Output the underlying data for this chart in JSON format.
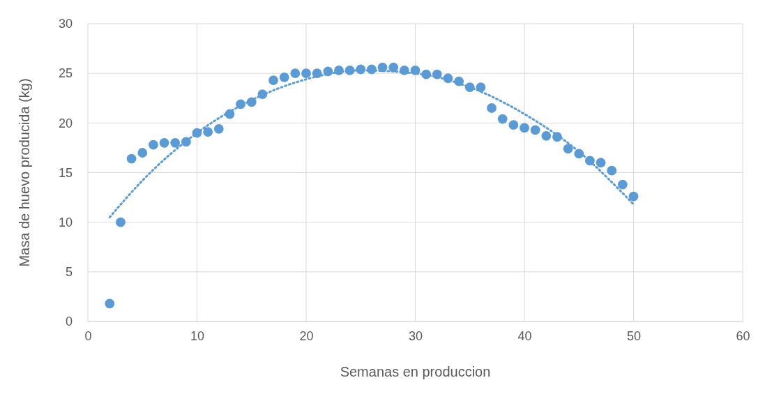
{
  "chart_data": {
    "type": "scatter",
    "xlabel": "Semanas en produccion",
    "ylabel": "Masa de huevo producida (kg)",
    "xlim": [
      0,
      60
    ],
    "xticks": [
      0,
      10,
      20,
      30,
      40,
      50,
      60
    ],
    "ylim": [
      0,
      30
    ],
    "yticks": [
      0,
      5,
      10,
      15,
      20,
      25,
      30
    ],
    "grid": true,
    "series": [
      {
        "color": "#5b9bd5",
        "marker": "circle",
        "x": [
          2,
          3,
          4,
          5,
          6,
          7,
          8,
          9,
          10,
          11,
          12,
          13,
          14,
          15,
          16,
          17,
          18,
          19,
          20,
          21,
          22,
          23,
          24,
          25,
          26,
          27,
          28,
          29,
          30,
          31,
          32,
          33,
          34,
          35,
          36,
          37,
          38,
          39,
          40,
          41,
          42,
          43,
          44,
          45,
          46,
          47,
          48,
          49,
          50
        ],
        "values": [
          1.8,
          10.0,
          16.4,
          17.0,
          17.8,
          18.0,
          18.0,
          18.1,
          19.0,
          19.1,
          19.4,
          20.9,
          21.9,
          22.1,
          22.9,
          24.3,
          24.6,
          25.0,
          25.0,
          25.0,
          25.2,
          25.3,
          25.3,
          25.4,
          25.4,
          25.6,
          25.6,
          25.3,
          25.3,
          24.9,
          24.9,
          24.5,
          24.2,
          23.6,
          23.6,
          21.5,
          20.4,
          19.8,
          19.5,
          19.3,
          18.7,
          18.6,
          17.4,
          16.9,
          16.2,
          16.0,
          15.2,
          13.8,
          12.6
        ]
      },
      {
        "type": "line",
        "color": "#5b9bd5",
        "line_style": "dotted",
        "marker": "none",
        "x": [
          2,
          5,
          10,
          15,
          20,
          25,
          30,
          35,
          40,
          45,
          50
        ],
        "values": [
          10.5,
          14.2,
          19.0,
          22.3,
          24.4,
          25.3,
          25.0,
          23.6,
          20.9,
          17.1,
          11.8
        ]
      }
    ]
  }
}
